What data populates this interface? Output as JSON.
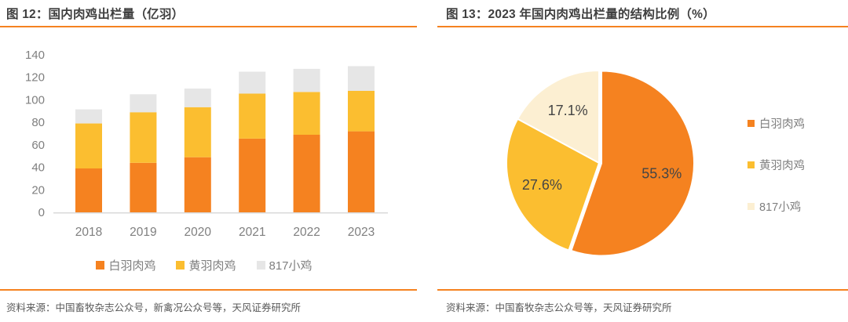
{
  "figure12": {
    "title": "图 12：国内肉鸡出栏量（亿羽）",
    "source": "资料来源：中国畜牧杂志公众号，新禽况公众号等，天风证券研究所"
  },
  "figure13": {
    "title": "图 13：2023 年国内肉鸡出栏量的结构比例（%）",
    "source": "资料来源：中国畜牧杂志公众号等，天风证券研究所"
  },
  "colors": {
    "accent_rule": "#F58220",
    "white_feather_orange": "#F58220",
    "yellow_feather_yellow": "#FBBE30",
    "chick817_gray_bar": "#E6E6E6",
    "chick817_cream_pie": "#FCEFD2",
    "title_text": "#3F3F3F",
    "axis_text": "#7F7F7F",
    "source_text": "#595959",
    "pie_label_text": "#454545",
    "axis_line": "#D9D9D9"
  },
  "chart_data": [
    {
      "type": "bar",
      "stacked": true,
      "title": "国内肉鸡出栏量（亿羽）",
      "categories": [
        "2018",
        "2019",
        "2020",
        "2021",
        "2022",
        "2023"
      ],
      "series": [
        {
          "name": "白羽肉鸡",
          "color": "#F58220",
          "values": [
            39,
            44,
            49,
            65.5,
            69,
            72
          ]
        },
        {
          "name": "黄羽肉鸡",
          "color": "#FBBE30",
          "values": [
            40,
            45,
            44.5,
            40,
            38,
            36
          ]
        },
        {
          "name": "817小鸡",
          "color": "#E6E6E6",
          "values": [
            12.5,
            16,
            16.5,
            19.5,
            20.5,
            22
          ]
        }
      ],
      "ylabel": "",
      "ylim": [
        0,
        140
      ],
      "yticks": [
        0,
        20,
        40,
        60,
        80,
        100,
        120,
        140
      ],
      "grid": false,
      "legend_position": "bottom"
    },
    {
      "type": "pie",
      "title": "2023 年国内肉鸡出栏量的结构比例（%）",
      "labels": [
        "白羽肉鸡",
        "黄羽肉鸡",
        "817小鸡"
      ],
      "values": [
        55.3,
        27.6,
        17.1
      ],
      "colors": [
        "#F58220",
        "#FBBE30",
        "#FCEFD2"
      ],
      "start_angle_deg": 0,
      "direction": "clockwise",
      "exploded_slice": "白羽肉鸡",
      "legend_position": "right"
    }
  ]
}
